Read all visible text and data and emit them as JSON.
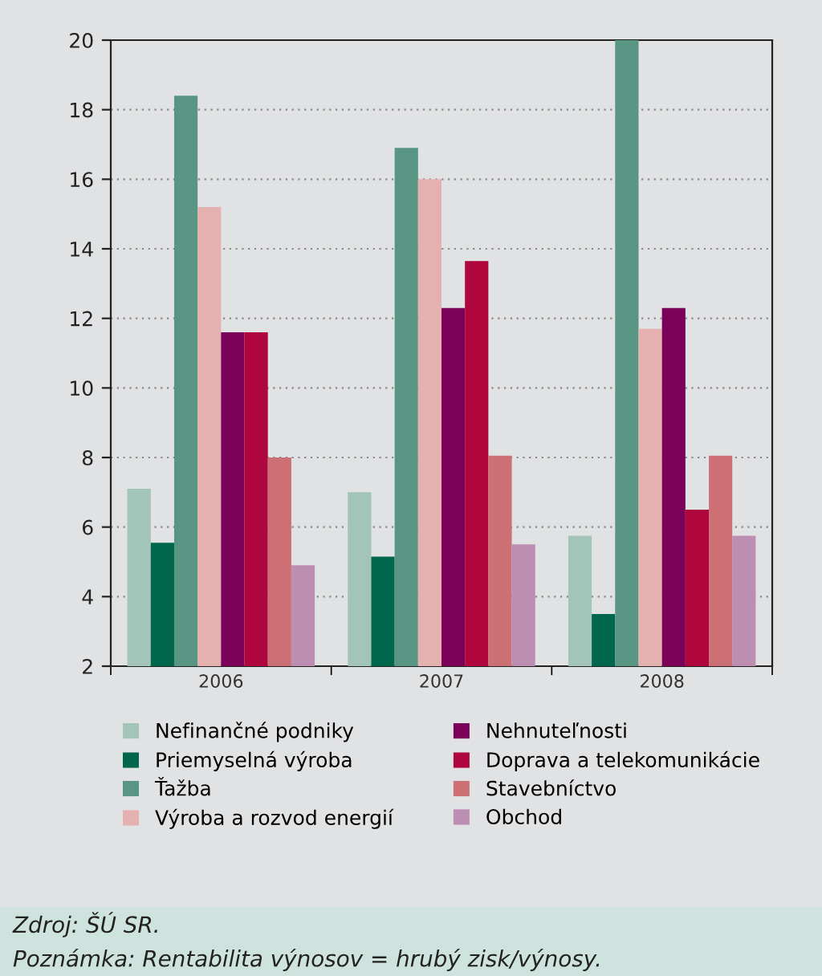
{
  "chart_data": {
    "type": "bar",
    "categories": [
      "2006",
      "2007",
      "2008"
    ],
    "series": [
      {
        "name": "Nefinančné podniky",
        "color": "#a3c4b8",
        "values": [
          7.1,
          7.0,
          5.75
        ]
      },
      {
        "name": "Priemyselná výroba",
        "color": "#00664c",
        "values": [
          5.55,
          5.15,
          3.5
        ]
      },
      {
        "name": "Ťažba",
        "color": "#589683",
        "values": [
          18.4,
          16.9,
          20.0
        ]
      },
      {
        "name": "Výroba a rozvod energií",
        "color": "#e5b0b0",
        "values": [
          15.2,
          16.0,
          11.7
        ]
      },
      {
        "name": "Nehnuteľnosti",
        "color": "#7a0058",
        "values": [
          11.6,
          12.3,
          12.3
        ]
      },
      {
        "name": "Doprava a telekomunikácie",
        "color": "#b0063e",
        "values": [
          11.6,
          13.65,
          6.5
        ]
      },
      {
        "name": "Stavebníctvo",
        "color": "#cd7076",
        "values": [
          8.0,
          8.05,
          8.05
        ]
      },
      {
        "name": "Obchod",
        "color": "#bb8eb2",
        "values": [
          4.9,
          5.5,
          5.75
        ]
      }
    ],
    "ylim": [
      2,
      20
    ],
    "yticks": [
      2,
      4,
      6,
      8,
      10,
      12,
      14,
      16,
      18,
      20
    ],
    "grid": "y",
    "legend": "bottom",
    "annotations": [
      "Zdroj: ŠÚ SR.",
      "Poznámka: Rentabilita výnosov = hrubý zisk/výnosy."
    ]
  }
}
